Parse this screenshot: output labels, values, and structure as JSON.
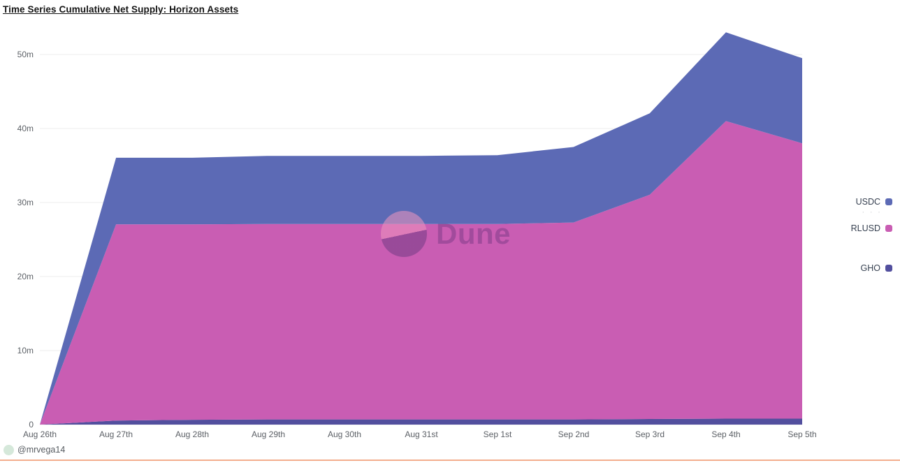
{
  "title": "Time Series Cumulative Net Supply: Horizon Assets",
  "watermark": {
    "text": "Dune"
  },
  "footer": {
    "username": "@mrvega14"
  },
  "legend": {
    "more_indicator": "· · ·"
  },
  "chart_data": {
    "type": "area",
    "stacked": true,
    "title": "Time Series Cumulative Net Supply: Horizon Assets",
    "categories": [
      "Aug 26th",
      "Aug 27th",
      "Aug 28th",
      "Aug 29th",
      "Aug 30th",
      "Aug 31st",
      "Sep 1st",
      "Sep 2nd",
      "Sep 3rd",
      "Sep 4th",
      "Sep 5th"
    ],
    "series": [
      {
        "name": "USDC",
        "color": "#5c6ab5",
        "values": [
          0,
          9.0,
          9.0,
          9.2,
          9.2,
          9.2,
          9.3,
          10.2,
          11.0,
          12.0,
          11.5
        ]
      },
      {
        "name": "RLUSD",
        "color": "#c95db3",
        "values": [
          0,
          26.5,
          26.4,
          26.4,
          26.4,
          26.4,
          26.4,
          26.6,
          30.3,
          40.2,
          37.2
        ]
      },
      {
        "name": "GHO",
        "color": "#524f9e",
        "values": [
          0,
          0.55,
          0.65,
          0.7,
          0.7,
          0.7,
          0.7,
          0.7,
          0.75,
          0.8,
          0.8
        ]
      }
    ],
    "stack_order_bottom_to_top": [
      "GHO",
      "RLUSD",
      "USDC"
    ],
    "y_ticks": [
      "0",
      "10m",
      "20m",
      "30m",
      "40m",
      "50m"
    ],
    "y_tick_values": [
      0,
      10,
      20,
      30,
      40,
      50
    ],
    "ylim": [
      0,
      53
    ],
    "unit": "millions",
    "grid": "horizontal",
    "gridline_color": "#ededed",
    "legend_position": "right",
    "cumulative_totals": [
      0,
      36.05,
      36.05,
      36.3,
      36.3,
      36.3,
      36.4,
      37.5,
      42.05,
      53.0,
      49.5
    ]
  }
}
